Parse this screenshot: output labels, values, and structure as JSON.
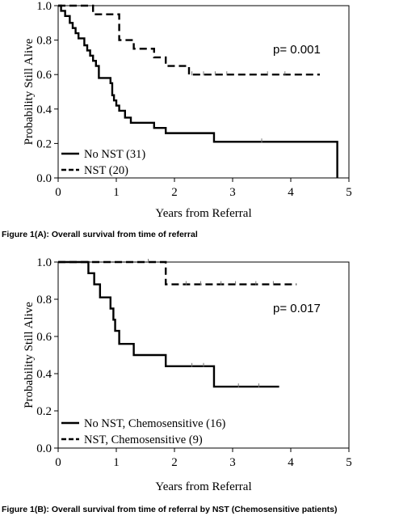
{
  "chart_data": [
    {
      "type": "line",
      "step": true,
      "ylabel": "Probability Still Alive",
      "xlabel": "Years from Referral",
      "xlim": [
        0,
        5
      ],
      "ylim": [
        0,
        1
      ],
      "xticks": [
        "0",
        "1",
        "2",
        "3",
        "4",
        "5"
      ],
      "yticks": [
        "0.0",
        "0.2",
        "0.4",
        "0.6",
        "0.8",
        "1.0"
      ],
      "annotation": "p= 0.001",
      "legend_position": "bottom-left",
      "caption": "Figure 1(A): Overall survival from time of referral",
      "series": [
        {
          "name": "No NST (31)",
          "style": "solid",
          "points": [
            [
              0,
              1.0
            ],
            [
              0.05,
              0.97
            ],
            [
              0.12,
              0.94
            ],
            [
              0.2,
              0.9
            ],
            [
              0.25,
              0.87
            ],
            [
              0.3,
              0.84
            ],
            [
              0.35,
              0.81
            ],
            [
              0.45,
              0.77
            ],
            [
              0.5,
              0.74
            ],
            [
              0.55,
              0.71
            ],
            [
              0.6,
              0.68
            ],
            [
              0.65,
              0.65
            ],
            [
              0.7,
              0.58
            ],
            [
              0.9,
              0.55
            ],
            [
              0.93,
              0.48
            ],
            [
              0.96,
              0.45
            ],
            [
              1.0,
              0.42
            ],
            [
              1.05,
              0.39
            ],
            [
              1.15,
              0.35
            ],
            [
              1.25,
              0.32
            ],
            [
              1.65,
              0.29
            ],
            [
              1.85,
              0.26
            ],
            [
              2.68,
              0.21
            ],
            [
              4.8,
              0.21
            ],
            [
              4.8,
              0.0
            ]
          ],
          "censors": [
            [
              3.5,
              0.21
            ]
          ]
        },
        {
          "name": "NST (20)",
          "style": "dashed",
          "points": [
            [
              0,
              1.0
            ],
            [
              0.6,
              1.0
            ],
            [
              0.6,
              0.95
            ],
            [
              1.05,
              0.95
            ],
            [
              1.05,
              0.8
            ],
            [
              1.3,
              0.8
            ],
            [
              1.3,
              0.75
            ],
            [
              1.65,
              0.75
            ],
            [
              1.65,
              0.7
            ],
            [
              1.85,
              0.7
            ],
            [
              1.85,
              0.65
            ],
            [
              2.25,
              0.65
            ],
            [
              2.25,
              0.6
            ],
            [
              4.5,
              0.6
            ]
          ],
          "censors": [
            [
              2.3,
              0.6
            ],
            [
              2.5,
              0.6
            ],
            [
              2.7,
              0.6
            ],
            [
              2.9,
              0.6
            ],
            [
              3.6,
              0.6
            ],
            [
              3.9,
              0.6
            ]
          ]
        }
      ]
    },
    {
      "type": "line",
      "step": true,
      "ylabel": "Probability Still Alive",
      "xlabel": "Years from Referral",
      "xlim": [
        0,
        5
      ],
      "ylim": [
        0,
        1
      ],
      "xticks": [
        "0",
        "1",
        "2",
        "3",
        "4",
        "5"
      ],
      "yticks": [
        "0.0",
        "0.2",
        "0.4",
        "0.6",
        "0.8",
        "1.0"
      ],
      "annotation": "p= 0.017",
      "legend_position": "bottom-left",
      "caption": "Figure 1(B): Overall survival from time of referral by NST (Chemosensitive patients)",
      "series": [
        {
          "name": "No NST, Chemosensitive (16)",
          "style": "solid",
          "points": [
            [
              0,
              1.0
            ],
            [
              0.52,
              1.0
            ],
            [
              0.52,
              0.94
            ],
            [
              0.62,
              0.94
            ],
            [
              0.62,
              0.88
            ],
            [
              0.72,
              0.88
            ],
            [
              0.72,
              0.81
            ],
            [
              0.9,
              0.81
            ],
            [
              0.9,
              0.75
            ],
            [
              0.95,
              0.75
            ],
            [
              0.95,
              0.69
            ],
            [
              0.98,
              0.69
            ],
            [
              0.98,
              0.63
            ],
            [
              1.05,
              0.63
            ],
            [
              1.05,
              0.56
            ],
            [
              1.3,
              0.56
            ],
            [
              1.3,
              0.5
            ],
            [
              1.85,
              0.5
            ],
            [
              1.85,
              0.44
            ],
            [
              2.68,
              0.44
            ],
            [
              2.68,
              0.33
            ],
            [
              3.8,
              0.33
            ]
          ],
          "censors": [
            [
              2.3,
              0.44
            ],
            [
              2.5,
              0.44
            ],
            [
              3.1,
              0.33
            ],
            [
              3.45,
              0.33
            ]
          ]
        },
        {
          "name": "NST, Chemosensitive (9)",
          "style": "dashed",
          "points": [
            [
              0,
              1.0
            ],
            [
              1.85,
              1.0
            ],
            [
              1.85,
              0.88
            ],
            [
              4.1,
              0.88
            ]
          ],
          "censors": [
            [
              1.55,
              1.0
            ],
            [
              2.2,
              0.88
            ],
            [
              2.45,
              0.88
            ],
            [
              2.8,
              0.88
            ],
            [
              3.05,
              0.88
            ],
            [
              3.4,
              0.88
            ],
            [
              3.7,
              0.88
            ]
          ]
        }
      ]
    }
  ]
}
